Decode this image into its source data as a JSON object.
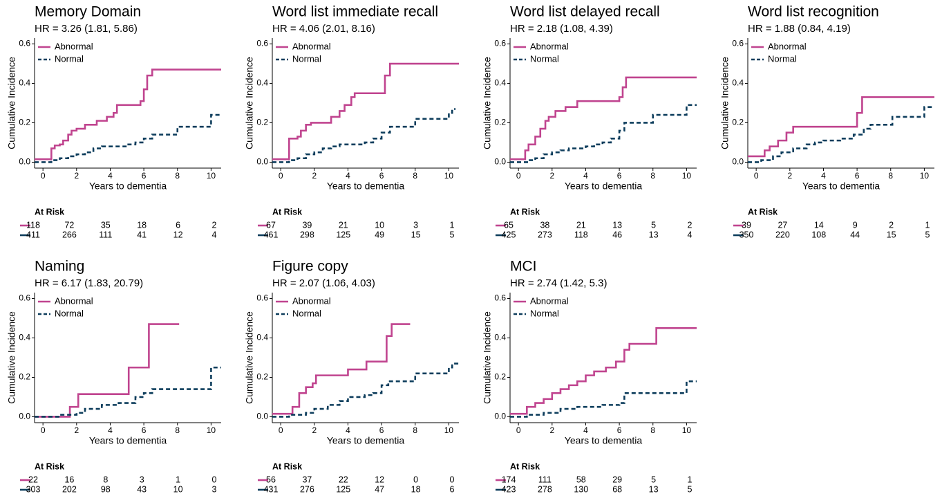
{
  "chart_data": [
    {
      "type": "step",
      "title": "Memory Domain",
      "subtitle": "HR = 3.26 (1.81, 5.86)",
      "xlabel": "Years to dementia",
      "ylabel": "Cumulative Incidence",
      "xlim": [
        -0.5,
        10.6
      ],
      "ylim": [
        -0.03,
        0.63
      ],
      "xticks": [
        0,
        2,
        4,
        6,
        8,
        10
      ],
      "yticks": [
        {
          "value": 0,
          "label": "0.0"
        },
        0.2,
        0.4,
        0.6
      ],
      "legend": "top-left",
      "series": [
        {
          "name": "Abnormal",
          "color": "#c0448f",
          "linestyle": "solid",
          "x": [
            -0.5,
            0.5,
            0.7,
            1.0,
            1.2,
            1.5,
            1.7,
            2.0,
            2.5,
            3.2,
            3.8,
            4.2,
            4.4,
            5.8,
            6.0,
            6.2,
            6.5,
            10.6
          ],
          "values": [
            0.015,
            0.07,
            0.085,
            0.09,
            0.11,
            0.14,
            0.16,
            0.17,
            0.19,
            0.21,
            0.23,
            0.25,
            0.29,
            0.31,
            0.37,
            0.44,
            0.47,
            0.47
          ]
        },
        {
          "name": "Normal",
          "color": "#0d3d5c",
          "linestyle": "dashed",
          "x": [
            -0.5,
            0.5,
            1,
            1.5,
            2,
            2.5,
            3,
            3.5,
            5,
            5.5,
            6,
            6.5,
            8,
            10,
            10.6
          ],
          "values": [
            0,
            0.01,
            0.02,
            0.03,
            0.04,
            0.05,
            0.07,
            0.08,
            0.09,
            0.1,
            0.12,
            0.14,
            0.18,
            0.24,
            0.24
          ]
        }
      ],
      "at_risk": {
        "title": "At Risk",
        "rows": [
          [
            118,
            72,
            35,
            18,
            6,
            2
          ],
          [
            411,
            266,
            111,
            41,
            12,
            4
          ]
        ]
      }
    },
    {
      "type": "step",
      "title": "Word list immediate recall",
      "subtitle": "HR = 4.06 (2.01, 8.16)",
      "xlabel": "Years to dementia",
      "ylabel": "Cumulative Incidence",
      "xlim": [
        -0.5,
        10.6
      ],
      "ylim": [
        -0.03,
        0.63
      ],
      "xticks": [
        0,
        2,
        4,
        6,
        8,
        10
      ],
      "yticks": [
        {
          "value": 0,
          "label": "0.0"
        },
        0.2,
        0.4,
        0.6
      ],
      "legend": "top-left",
      "series": [
        {
          "name": "Abnormal",
          "color": "#c0448f",
          "linestyle": "solid",
          "x": [
            -0.5,
            0.5,
            1,
            1.2,
            1.5,
            1.8,
            3,
            3.5,
            3.8,
            4.2,
            4.4,
            6.2,
            6.5,
            10.6
          ],
          "values": [
            0.015,
            0.12,
            0.13,
            0.16,
            0.19,
            0.2,
            0.23,
            0.26,
            0.29,
            0.33,
            0.35,
            0.44,
            0.5,
            0.5
          ]
        },
        {
          "name": "Normal",
          "color": "#0d3d5c",
          "linestyle": "dashed",
          "x": [
            -0.5,
            0.5,
            1,
            1.5,
            2,
            2.5,
            3,
            3.5,
            5,
            5.5,
            6,
            6.5,
            8,
            10,
            10.2,
            10.4
          ],
          "values": [
            0,
            0.01,
            0.02,
            0.04,
            0.05,
            0.07,
            0.08,
            0.09,
            0.1,
            0.12,
            0.15,
            0.18,
            0.22,
            0.25,
            0.27,
            0.27
          ]
        }
      ],
      "at_risk": {
        "title": "At Risk",
        "rows": [
          [
            67,
            39,
            21,
            10,
            3,
            1
          ],
          [
            461,
            298,
            125,
            49,
            15,
            5
          ]
        ]
      }
    },
    {
      "type": "step",
      "title": "Word list delayed recall",
      "subtitle": "HR = 2.18 (1.08, 4.39)",
      "xlabel": "Years to dementia",
      "ylabel": "Cumulative Incidence",
      "xlim": [
        -0.5,
        10.6
      ],
      "ylim": [
        -0.03,
        0.63
      ],
      "xticks": [
        0,
        2,
        4,
        6,
        8,
        10
      ],
      "yticks": [
        {
          "value": 0,
          "label": "0.0"
        },
        0.2,
        0.4,
        0.6
      ],
      "legend": "top-left",
      "series": [
        {
          "name": "Abnormal",
          "color": "#c0448f",
          "linestyle": "solid",
          "x": [
            -0.5,
            0.4,
            0.6,
            1,
            1.3,
            1.6,
            1.8,
            2.2,
            2.8,
            3.5,
            6,
            6.2,
            6.4,
            10.6
          ],
          "values": [
            0.015,
            0.06,
            0.09,
            0.13,
            0.17,
            0.21,
            0.23,
            0.26,
            0.28,
            0.31,
            0.33,
            0.38,
            0.43,
            0.43
          ]
        },
        {
          "name": "Normal",
          "color": "#0d3d5c",
          "linestyle": "dashed",
          "x": [
            -0.5,
            0.6,
            1,
            1.5,
            2,
            2.5,
            3,
            4,
            4.5,
            5,
            5.5,
            6,
            6.3,
            8,
            10,
            10.6
          ],
          "values": [
            0,
            0.01,
            0.02,
            0.04,
            0.05,
            0.06,
            0.07,
            0.08,
            0.09,
            0.1,
            0.12,
            0.16,
            0.2,
            0.24,
            0.29,
            0.29
          ]
        }
      ],
      "at_risk": {
        "title": "At Risk",
        "rows": [
          [
            65,
            38,
            21,
            13,
            5,
            2
          ],
          [
            425,
            273,
            118,
            46,
            13,
            4
          ]
        ]
      }
    },
    {
      "type": "step",
      "title": "Word list recognition",
      "subtitle": "HR = 1.88 (0.84, 4.19)",
      "xlabel": "Years to dementia",
      "ylabel": "Cumulative Incidence",
      "xlim": [
        -0.5,
        10.6
      ],
      "ylim": [
        -0.03,
        0.63
      ],
      "xticks": [
        0,
        2,
        4,
        6,
        8,
        10
      ],
      "yticks": [
        {
          "value": 0,
          "label": "0.0"
        },
        0.2,
        0.4,
        0.6
      ],
      "legend": "top-left",
      "series": [
        {
          "name": "Abnormal",
          "color": "#c0448f",
          "linestyle": "solid",
          "x": [
            -0.5,
            0.5,
            0.8,
            1.3,
            1.8,
            2.2,
            6,
            6.3,
            10.6
          ],
          "values": [
            0.03,
            0.06,
            0.08,
            0.11,
            0.15,
            0.18,
            0.25,
            0.33,
            0.33
          ]
        },
        {
          "name": "Normal",
          "color": "#0d3d5c",
          "linestyle": "dashed",
          "x": [
            -0.5,
            0.3,
            1,
            1.5,
            2.2,
            3,
            3.5,
            4,
            5,
            5.8,
            6.4,
            6.8,
            8.1,
            10,
            10.6
          ],
          "values": [
            0,
            0.01,
            0.03,
            0.05,
            0.07,
            0.09,
            0.1,
            0.11,
            0.12,
            0.14,
            0.17,
            0.19,
            0.23,
            0.28,
            0.28
          ]
        }
      ],
      "at_risk": {
        "title": "At Risk",
        "rows": [
          [
            39,
            27,
            14,
            9,
            2,
            1
          ],
          [
            350,
            220,
            108,
            44,
            15,
            5
          ]
        ]
      }
    },
    {
      "type": "step",
      "title": "Naming",
      "subtitle": "HR = 6.17 (1.83, 20.79)",
      "xlabel": "Years to dementia",
      "ylabel": "Cumulative Incidence",
      "xlim": [
        -0.5,
        10.6
      ],
      "ylim": [
        -0.03,
        0.63
      ],
      "xticks": [
        0,
        2,
        4,
        6,
        8,
        10
      ],
      "yticks": [
        {
          "value": 0,
          "label": "0.0"
        },
        0.2,
        0.4,
        0.6
      ],
      "legend": "top-left",
      "series": [
        {
          "name": "Abnormal",
          "color": "#c0448f",
          "linestyle": "solid",
          "x": [
            -0.5,
            1.6,
            2.1,
            5.1,
            6.3,
            8.1
          ],
          "values": [
            0,
            0.05,
            0.115,
            0.25,
            0.47,
            0.47
          ]
        },
        {
          "name": "Normal",
          "color": "#0d3d5c",
          "linestyle": "dashed",
          "x": [
            -0.5,
            1,
            2,
            2.5,
            3.5,
            4.5,
            5.5,
            6,
            6.5,
            10,
            10.6
          ],
          "values": [
            0,
            0.01,
            0.02,
            0.04,
            0.06,
            0.07,
            0.1,
            0.12,
            0.14,
            0.25,
            0.25
          ]
        }
      ],
      "at_risk": {
        "title": "At Risk",
        "rows": [
          [
            22,
            16,
            8,
            3,
            1,
            0
          ],
          [
            303,
            202,
            98,
            43,
            10,
            3
          ]
        ]
      }
    },
    {
      "type": "step",
      "title": "Figure copy",
      "subtitle": "HR = 2.07 (1.06, 4.03)",
      "xlabel": "Years to dementia",
      "ylabel": "Cumulative Incidence",
      "xlim": [
        -0.5,
        10.6
      ],
      "ylim": [
        -0.03,
        0.63
      ],
      "xticks": [
        0,
        2,
        4,
        6,
        8,
        10
      ],
      "yticks": [
        {
          "value": 0,
          "label": "0.0"
        },
        0.2,
        0.4,
        0.6
      ],
      "legend": "top-left",
      "series": [
        {
          "name": "Abnormal",
          "color": "#c0448f",
          "linestyle": "solid",
          "x": [
            -0.5,
            0.7,
            1.1,
            1.5,
            1.9,
            2.1,
            4,
            5.1,
            6.3,
            6.6,
            7.7
          ],
          "values": [
            0.015,
            0.05,
            0.12,
            0.15,
            0.17,
            0.21,
            0.24,
            0.28,
            0.41,
            0.47,
            0.47
          ]
        },
        {
          "name": "Normal",
          "color": "#0d3d5c",
          "linestyle": "dashed",
          "x": [
            -0.5,
            0.5,
            1.5,
            2,
            2.8,
            3.5,
            4,
            5,
            5.5,
            6,
            6.4,
            8,
            10,
            10.2,
            10.6
          ],
          "values": [
            0,
            0.01,
            0.02,
            0.04,
            0.06,
            0.08,
            0.1,
            0.11,
            0.12,
            0.16,
            0.18,
            0.22,
            0.25,
            0.27,
            0.27
          ]
        }
      ],
      "at_risk": {
        "title": "At Risk",
        "rows": [
          [
            56,
            37,
            22,
            12,
            0,
            0
          ],
          [
            431,
            276,
            125,
            47,
            18,
            6
          ]
        ]
      }
    },
    {
      "type": "step",
      "title": "MCI",
      "subtitle": "HR = 2.74 (1.42, 5.3)",
      "xlabel": "Years to dementia",
      "ylabel": "Cumulative Incidence",
      "xlim": [
        -0.5,
        10.6
      ],
      "ylim": [
        -0.03,
        0.63
      ],
      "xticks": [
        0,
        2,
        4,
        6,
        8,
        10
      ],
      "yticks": [
        {
          "value": 0,
          "label": "0.0"
        },
        0.2,
        0.4,
        0.6
      ],
      "legend": "top-left",
      "series": [
        {
          "name": "Abnormal",
          "color": "#c0448f",
          "linestyle": "solid",
          "x": [
            -0.5,
            0.5,
            1,
            1.5,
            2,
            2.5,
            3,
            3.5,
            4,
            4.5,
            5.2,
            5.8,
            6.3,
            6.6,
            8.2,
            10.6
          ],
          "values": [
            0.015,
            0.05,
            0.07,
            0.09,
            0.12,
            0.14,
            0.16,
            0.18,
            0.21,
            0.23,
            0.25,
            0.28,
            0.34,
            0.37,
            0.45,
            0.45
          ]
        },
        {
          "name": "Normal",
          "color": "#0d3d5c",
          "linestyle": "dashed",
          "x": [
            -0.5,
            0.5,
            1.5,
            2.5,
            3.5,
            5,
            6,
            6.3,
            10,
            10.6
          ],
          "values": [
            0,
            0.01,
            0.02,
            0.04,
            0.05,
            0.06,
            0.07,
            0.12,
            0.18,
            0.18
          ]
        }
      ],
      "at_risk": {
        "title": "At Risk",
        "rows": [
          [
            174,
            111,
            58,
            29,
            5,
            1
          ],
          [
            423,
            278,
            130,
            68,
            13,
            5
          ]
        ]
      }
    }
  ]
}
